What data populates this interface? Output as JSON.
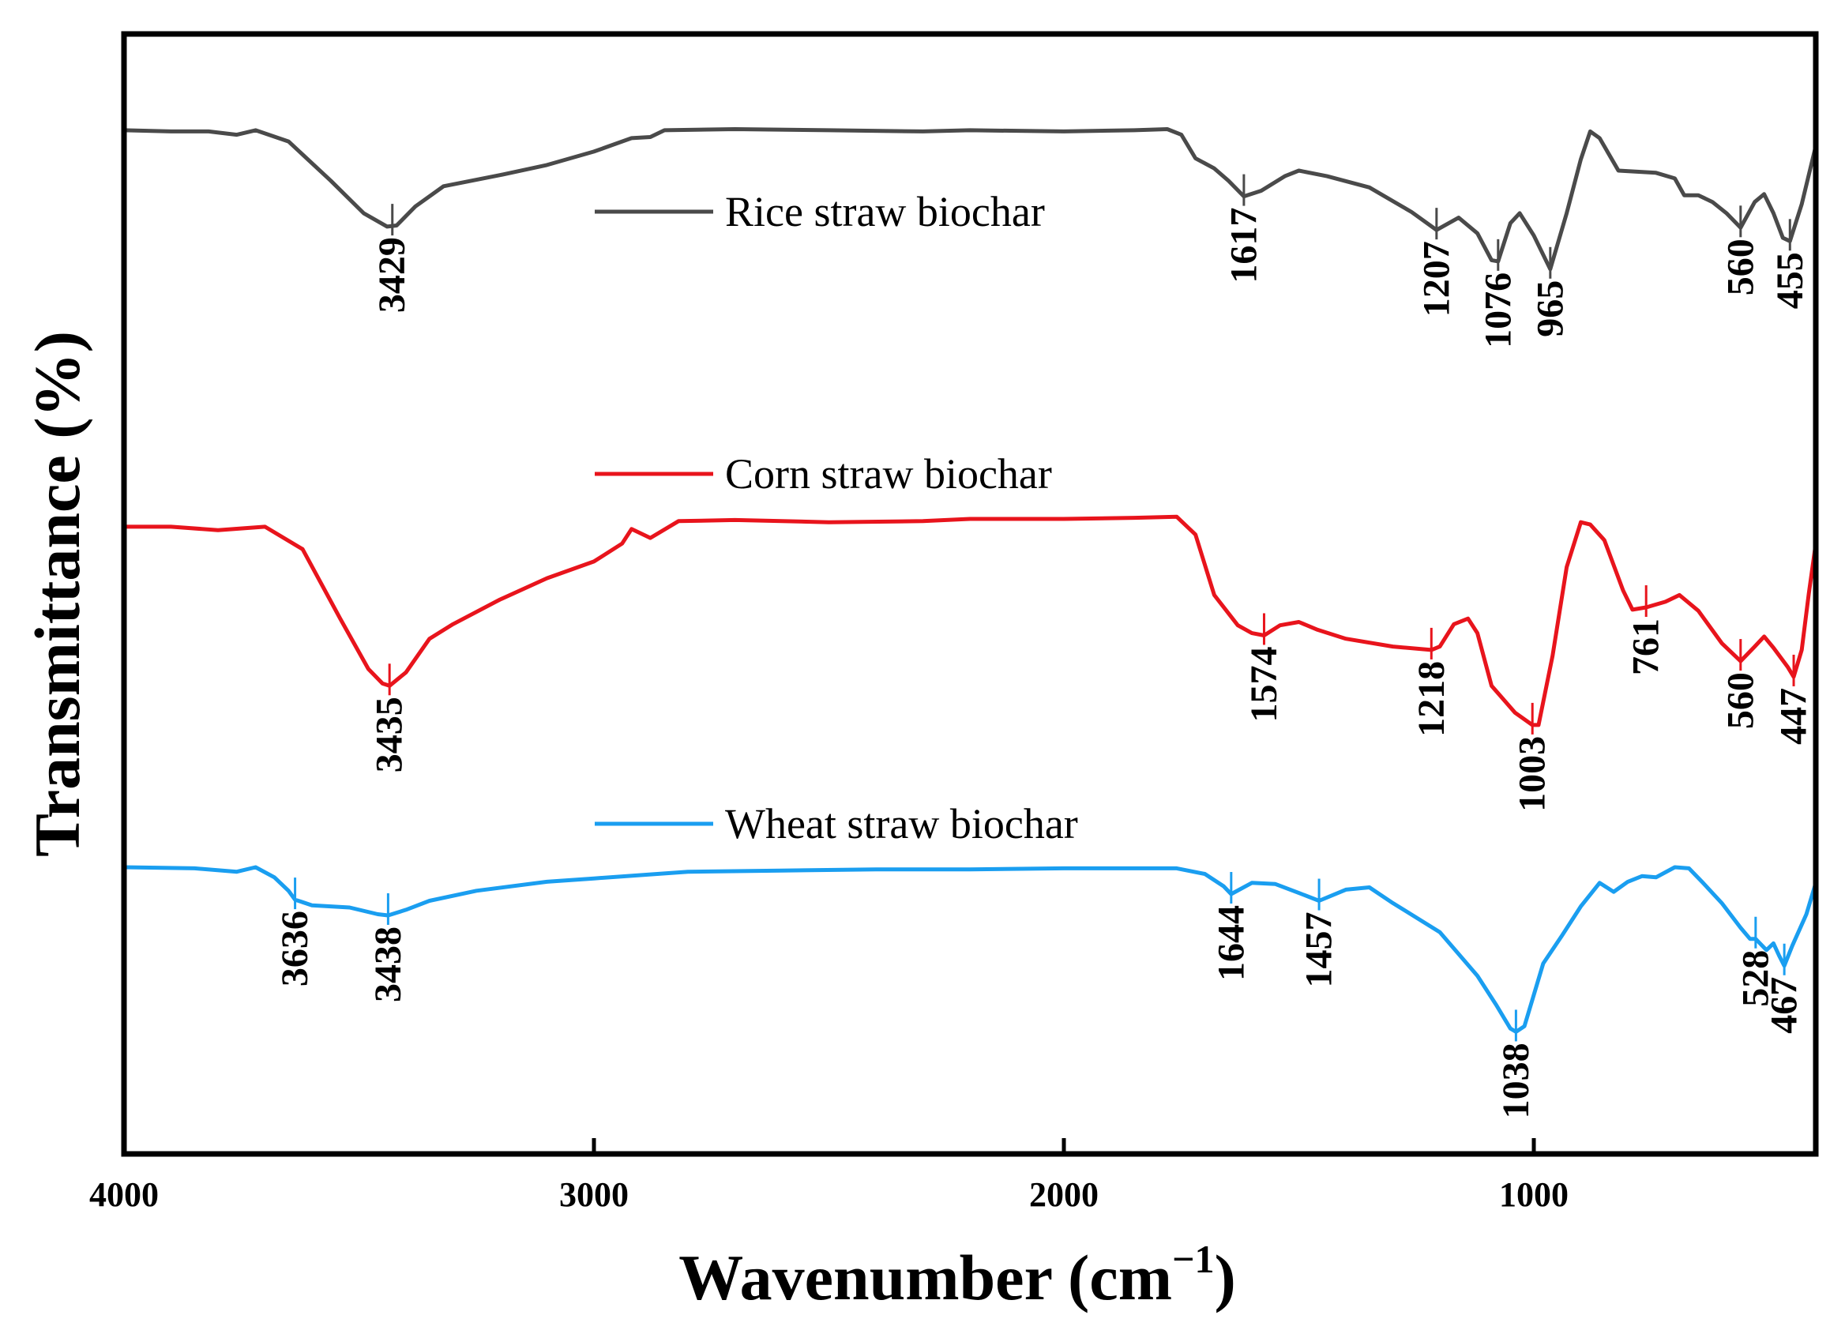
{
  "chart_data": {
    "type": "line",
    "xlabel": "Wavenumber (cm",
    "xlabel_sup": "−1",
    "xlabel_close": ")",
    "ylabel": "Transmittance (%)",
    "xlim": [
      4000,
      400
    ],
    "ylim": [
      0,
      100
    ],
    "x_ticks": [
      4000,
      3000,
      2000,
      1000
    ],
    "x_tick_labels": [
      "4000",
      "3000",
      "2000",
      "1000"
    ],
    "y_ticks_shown": false,
    "series": [
      {
        "name": "Rice straw biochar",
        "color": "#4a4a4a",
        "points": [
          [
            4000,
            91.4
          ],
          [
            3900,
            91.3
          ],
          [
            3820,
            91.3
          ],
          [
            3760,
            91.0
          ],
          [
            3720,
            91.4
          ],
          [
            3650,
            90.4
          ],
          [
            3560,
            86.9
          ],
          [
            3490,
            84.0
          ],
          [
            3440,
            82.8
          ],
          [
            3420,
            82.9
          ],
          [
            3380,
            84.6
          ],
          [
            3320,
            86.4
          ],
          [
            3200,
            87.4
          ],
          [
            3100,
            88.3
          ],
          [
            3000,
            89.5
          ],
          [
            2960,
            90.1
          ],
          [
            2920,
            90.7
          ],
          [
            2880,
            90.8
          ],
          [
            2850,
            91.4
          ],
          [
            2700,
            91.5
          ],
          [
            2500,
            91.4
          ],
          [
            2300,
            91.3
          ],
          [
            2200,
            91.4
          ],
          [
            2000,
            91.3
          ],
          [
            1850,
            91.4
          ],
          [
            1780,
            91.5
          ],
          [
            1750,
            91.0
          ],
          [
            1720,
            88.9
          ],
          [
            1680,
            88.0
          ],
          [
            1650,
            86.9
          ],
          [
            1617,
            85.5
          ],
          [
            1580,
            86.0
          ],
          [
            1530,
            87.3
          ],
          [
            1500,
            87.8
          ],
          [
            1440,
            87.3
          ],
          [
            1350,
            86.3
          ],
          [
            1260,
            84.1
          ],
          [
            1207,
            82.5
          ],
          [
            1160,
            83.6
          ],
          [
            1120,
            82.2
          ],
          [
            1090,
            79.8
          ],
          [
            1076,
            79.7
          ],
          [
            1050,
            83.1
          ],
          [
            1030,
            84.0
          ],
          [
            1000,
            82.0
          ],
          [
            965,
            79.0
          ],
          [
            930,
            84.0
          ],
          [
            900,
            88.8
          ],
          [
            880,
            91.3
          ],
          [
            860,
            90.7
          ],
          [
            820,
            87.8
          ],
          [
            780,
            87.7
          ],
          [
            740,
            87.6
          ],
          [
            700,
            87.1
          ],
          [
            680,
            85.6
          ],
          [
            650,
            85.6
          ],
          [
            620,
            85.0
          ],
          [
            590,
            84.0
          ],
          [
            560,
            82.7
          ],
          [
            530,
            85.0
          ],
          [
            510,
            85.7
          ],
          [
            490,
            84.0
          ],
          [
            470,
            81.8
          ],
          [
            455,
            81.5
          ],
          [
            430,
            84.8
          ],
          [
            400,
            90.0
          ]
        ]
      },
      {
        "name": "Corn straw biochar",
        "color": "#e8141c",
        "points": [
          [
            4000,
            56.0
          ],
          [
            3900,
            56.0
          ],
          [
            3800,
            55.7
          ],
          [
            3700,
            56.0
          ],
          [
            3620,
            54.0
          ],
          [
            3540,
            47.8
          ],
          [
            3480,
            43.3
          ],
          [
            3450,
            42.0
          ],
          [
            3435,
            41.8
          ],
          [
            3400,
            43.0
          ],
          [
            3350,
            46.0
          ],
          [
            3300,
            47.3
          ],
          [
            3200,
            49.5
          ],
          [
            3100,
            51.4
          ],
          [
            3000,
            52.9
          ],
          [
            2940,
            54.5
          ],
          [
            2920,
            55.8
          ],
          [
            2880,
            55.0
          ],
          [
            2820,
            56.5
          ],
          [
            2700,
            56.6
          ],
          [
            2500,
            56.4
          ],
          [
            2300,
            56.5
          ],
          [
            2200,
            56.7
          ],
          [
            2000,
            56.7
          ],
          [
            1850,
            56.8
          ],
          [
            1760,
            56.9
          ],
          [
            1720,
            55.3
          ],
          [
            1680,
            49.9
          ],
          [
            1630,
            47.2
          ],
          [
            1600,
            46.5
          ],
          [
            1574,
            46.3
          ],
          [
            1540,
            47.2
          ],
          [
            1500,
            47.5
          ],
          [
            1460,
            46.8
          ],
          [
            1400,
            46.0
          ],
          [
            1300,
            45.3
          ],
          [
            1218,
            45.0
          ],
          [
            1200,
            45.3
          ],
          [
            1170,
            47.3
          ],
          [
            1140,
            47.8
          ],
          [
            1120,
            46.5
          ],
          [
            1090,
            41.8
          ],
          [
            1040,
            39.4
          ],
          [
            1003,
            38.3
          ],
          [
            990,
            38.3
          ],
          [
            960,
            44.5
          ],
          [
            930,
            52.4
          ],
          [
            900,
            56.4
          ],
          [
            880,
            56.2
          ],
          [
            850,
            54.8
          ],
          [
            810,
            50.3
          ],
          [
            790,
            48.6
          ],
          [
            761,
            48.8
          ],
          [
            720,
            49.3
          ],
          [
            690,
            49.9
          ],
          [
            650,
            48.5
          ],
          [
            600,
            45.6
          ],
          [
            560,
            44.0
          ],
          [
            530,
            45.3
          ],
          [
            510,
            46.2
          ],
          [
            490,
            45.2
          ],
          [
            460,
            43.5
          ],
          [
            447,
            42.6
          ],
          [
            430,
            45.0
          ],
          [
            415,
            50.0
          ],
          [
            400,
            54.5
          ]
        ]
      },
      {
        "name": "Wheat straw biochar",
        "color": "#1a9ef0",
        "points": [
          [
            4000,
            25.6
          ],
          [
            3850,
            25.5
          ],
          [
            3760,
            25.2
          ],
          [
            3720,
            25.6
          ],
          [
            3680,
            24.7
          ],
          [
            3650,
            23.5
          ],
          [
            3636,
            22.7
          ],
          [
            3600,
            22.2
          ],
          [
            3520,
            22.0
          ],
          [
            3460,
            21.4
          ],
          [
            3438,
            21.3
          ],
          [
            3400,
            21.8
          ],
          [
            3350,
            22.6
          ],
          [
            3250,
            23.5
          ],
          [
            3100,
            24.3
          ],
          [
            3000,
            24.6
          ],
          [
            2800,
            25.2
          ],
          [
            2600,
            25.3
          ],
          [
            2400,
            25.4
          ],
          [
            2200,
            25.4
          ],
          [
            2000,
            25.5
          ],
          [
            1850,
            25.5
          ],
          [
            1760,
            25.5
          ],
          [
            1700,
            25.0
          ],
          [
            1660,
            23.9
          ],
          [
            1644,
            23.2
          ],
          [
            1600,
            24.2
          ],
          [
            1550,
            24.1
          ],
          [
            1500,
            23.3
          ],
          [
            1457,
            22.6
          ],
          [
            1400,
            23.6
          ],
          [
            1350,
            23.8
          ],
          [
            1300,
            22.4
          ],
          [
            1200,
            19.8
          ],
          [
            1120,
            15.9
          ],
          [
            1080,
            13.3
          ],
          [
            1050,
            11.2
          ],
          [
            1038,
            10.9
          ],
          [
            1020,
            11.4
          ],
          [
            1000,
            14.2
          ],
          [
            980,
            17.0
          ],
          [
            940,
            19.5
          ],
          [
            900,
            22.1
          ],
          [
            860,
            24.2
          ],
          [
            830,
            23.4
          ],
          [
            800,
            24.3
          ],
          [
            770,
            24.8
          ],
          [
            740,
            24.7
          ],
          [
            700,
            25.6
          ],
          [
            670,
            25.5
          ],
          [
            640,
            24.2
          ],
          [
            600,
            22.4
          ],
          [
            560,
            20.2
          ],
          [
            540,
            19.2
          ],
          [
            528,
            19.2
          ],
          [
            505,
            18.2
          ],
          [
            490,
            18.8
          ],
          [
            478,
            17.7
          ],
          [
            467,
            16.8
          ],
          [
            450,
            18.6
          ],
          [
            420,
            21.4
          ],
          [
            400,
            24.2
          ]
        ]
      }
    ],
    "peaks": [
      {
        "series": 0,
        "x": 3429,
        "label": "3429"
      },
      {
        "series": 0,
        "x": 1617,
        "label": "1617"
      },
      {
        "series": 0,
        "x": 1207,
        "label": "1207"
      },
      {
        "series": 0,
        "x": 1076,
        "label": "1076"
      },
      {
        "series": 0,
        "x": 965,
        "label": "965"
      },
      {
        "series": 0,
        "x": 560,
        "label": "560"
      },
      {
        "series": 0,
        "x": 455,
        "label": "455"
      },
      {
        "series": 1,
        "x": 3435,
        "label": "3435"
      },
      {
        "series": 1,
        "x": 1574,
        "label": "1574"
      },
      {
        "series": 1,
        "x": 1218,
        "label": "1218"
      },
      {
        "series": 1,
        "x": 1003,
        "label": "1003"
      },
      {
        "series": 1,
        "x": 761,
        "label": "761"
      },
      {
        "series": 1,
        "x": 560,
        "label": "560"
      },
      {
        "series": 1,
        "x": 447,
        "label": "447"
      },
      {
        "series": 2,
        "x": 3636,
        "label": "3636"
      },
      {
        "series": 2,
        "x": 3438,
        "label": "3438"
      },
      {
        "series": 2,
        "x": 1644,
        "label": "1644"
      },
      {
        "series": 2,
        "x": 1457,
        "label": "1457"
      },
      {
        "series": 2,
        "x": 1038,
        "label": "1038"
      },
      {
        "series": 2,
        "x": 528,
        "label": "528"
      },
      {
        "series": 2,
        "x": 467,
        "label": "467"
      }
    ],
    "legend": [
      {
        "series": 0,
        "label": "Rice straw biochar"
      },
      {
        "series": 1,
        "label": "Corn straw biochar"
      },
      {
        "series": 2,
        "label": "Wheat straw biochar"
      }
    ]
  }
}
